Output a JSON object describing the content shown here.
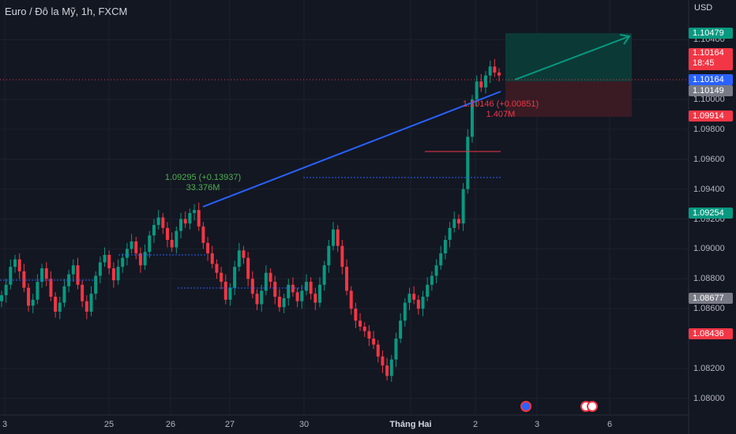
{
  "header": {
    "title": "Euro / Đô la Mỹ, 1h, FXCM",
    "currency": "USD"
  },
  "colors": {
    "background": "#131722",
    "up": "#089981",
    "down": "#f23645",
    "trendline": "#2962ff",
    "profit_zone": "#0b3a36",
    "loss_zone": "#3a1b24"
  },
  "y_axis_labels": [
    "1.10400",
    "1.10000",
    "1.09800",
    "1.09600",
    "1.09400",
    "1.09200",
    "1.09000",
    "1.08800",
    "1.08600",
    "1.08200",
    "1.08000"
  ],
  "x_axis": [
    {
      "label": "3",
      "bold": false
    },
    {
      "label": "25",
      "bold": false
    },
    {
      "label": "26",
      "bold": false
    },
    {
      "label": "27",
      "bold": false
    },
    {
      "label": "30",
      "bold": false
    },
    {
      "label": "Tháng Hai",
      "bold": true
    },
    {
      "label": "2",
      "bold": false
    },
    {
      "label": "3",
      "bold": false
    },
    {
      "label": "6",
      "bold": false
    }
  ],
  "price_tags": {
    "target": {
      "text": "1.10479",
      "color": "#089981"
    },
    "last": {
      "price": "1.10164",
      "countdown": "18:45",
      "color": "#f23645"
    },
    "bid": {
      "text": "1.10164",
      "color": "#2962ff"
    },
    "entry": {
      "text": "1.10149",
      "color": "#787b86"
    },
    "stop": {
      "text": "1.09914",
      "color": "#f23645"
    },
    "low_mark": {
      "text": "1.09254",
      "color": "#089981"
    },
    "mid_mark": {
      "text": "1.08677",
      "color": "#787b86"
    },
    "bottom_mark": {
      "text": "1.08436",
      "color": "#f23645"
    }
  },
  "annotations": {
    "left_price": "1.09295 (+0.13937)",
    "left_volume": "33.376M",
    "right_price": "1.10146 (+0.00851)",
    "right_volume": "1.407M"
  },
  "events": [
    "eu-flag-icon",
    "us-flag-icon"
  ],
  "chart_data": {
    "type": "candlestick",
    "symbol": "Euro / Đô la Mỹ",
    "interval": "1h",
    "ylim": [
      1.0792,
      1.1057
    ],
    "x_ticks": [
      "3",
      "25",
      "26",
      "27",
      "30",
      "Tháng Hai",
      "2",
      "3",
      "6"
    ],
    "y_ticks": [
      1.104,
      1.1,
      1.098,
      1.096,
      1.094,
      1.092,
      1.09,
      1.088,
      1.086,
      1.082,
      1.08
    ],
    "trendline": {
      "from": 1.0929,
      "to": 1.1015
    },
    "position": {
      "entry": 1.10149,
      "target": 1.10479,
      "stop": 1.09914
    },
    "closes": [
      1.0869,
      1.0876,
      1.0888,
      1.0893,
      1.0885,
      1.0874,
      1.0862,
      1.0866,
      1.0878,
      1.0887,
      1.088,
      1.0868,
      1.0858,
      1.0864,
      1.0875,
      1.0883,
      1.0889,
      1.0876,
      1.0865,
      1.0858,
      1.087,
      1.0882,
      1.0891,
      1.0896,
      1.0887,
      1.0879,
      1.0888,
      1.0894,
      1.09,
      1.0905,
      1.0897,
      1.0889,
      1.0898,
      1.0909,
      1.0916,
      1.0921,
      1.0914,
      1.0906,
      1.0901,
      1.0912,
      1.092,
      1.0917,
      1.0924,
      1.0926,
      1.0915,
      1.0904,
      1.0897,
      1.089,
      1.0884,
      1.0878,
      1.0866,
      1.0874,
      1.0888,
      1.0899,
      1.0894,
      1.088,
      1.087,
      1.0863,
      1.0872,
      1.0884,
      1.0878,
      1.0868,
      1.0861,
      1.0867,
      1.0876,
      1.0871,
      1.0865,
      1.0872,
      1.0878,
      1.087,
      1.0864,
      1.0876,
      1.0889,
      1.0902,
      1.0913,
      1.0902,
      1.0888,
      1.0872,
      1.086,
      1.0852,
      1.0848,
      1.0845,
      1.084,
      1.0836,
      1.0828,
      1.0822,
      1.0815,
      1.0826,
      1.084,
      1.0852,
      1.0864,
      1.087,
      1.0866,
      1.086,
      1.0868,
      1.0876,
      1.0882,
      1.0889,
      1.0897,
      1.0906,
      1.0914,
      1.092,
      1.0917,
      1.094,
      1.0975,
      1.1,
      1.1012,
      1.1008,
      1.1016,
      1.1022,
      1.1018,
      1.1016
    ]
  }
}
